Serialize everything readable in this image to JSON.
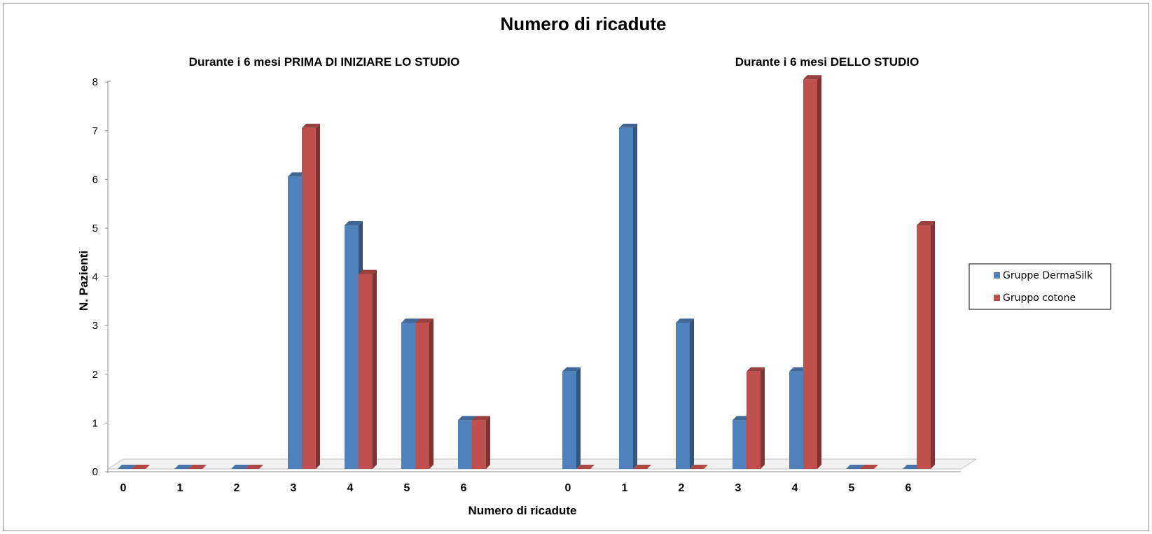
{
  "chart_data": {
    "type": "bar",
    "title": "Numero di ricadute",
    "xlabel": "Numero di ricadute",
    "ylabel": "N. Pazienti",
    "ylim": [
      0,
      8
    ],
    "yticks": [
      "0",
      "1",
      "2",
      "3",
      "4",
      "5",
      "6",
      "7",
      "8"
    ],
    "grid": false,
    "legend_position": "right",
    "three_d": true,
    "groups": [
      {
        "subtitle": "Durante i 6 mesi PRIMA DI INIZIARE LO STUDIO",
        "categories": [
          "0",
          "1",
          "2",
          "3",
          "4",
          "5",
          "6"
        ],
        "series": [
          {
            "name": "Gruppe DermaSilk",
            "color": "#4f81bd",
            "values": [
              0,
              0,
              0,
              6,
              5,
              3,
              1
            ]
          },
          {
            "name": "Gruppo cotone",
            "color": "#c0504d",
            "values": [
              0,
              0,
              0,
              7,
              4,
              3,
              1
            ]
          }
        ]
      },
      {
        "subtitle": "Durante i 6 mesi DELLO STUDIO",
        "categories": [
          "0",
          "1",
          "2",
          "3",
          "4",
          "5",
          "6"
        ],
        "series": [
          {
            "name": "Gruppe DermaSilk",
            "color": "#4f81bd",
            "values": [
              2,
              7,
              3,
              1,
              2,
              0,
              0
            ]
          },
          {
            "name": "Gruppo cotone",
            "color": "#c0504d",
            "values": [
              0,
              0,
              0,
              2,
              8,
              0,
              5
            ]
          }
        ]
      }
    ],
    "legend": [
      {
        "name": "Gruppe DermaSilk",
        "color": "#4f81bd"
      },
      {
        "name": "Gruppo cotone",
        "color": "#c0504d"
      }
    ]
  }
}
